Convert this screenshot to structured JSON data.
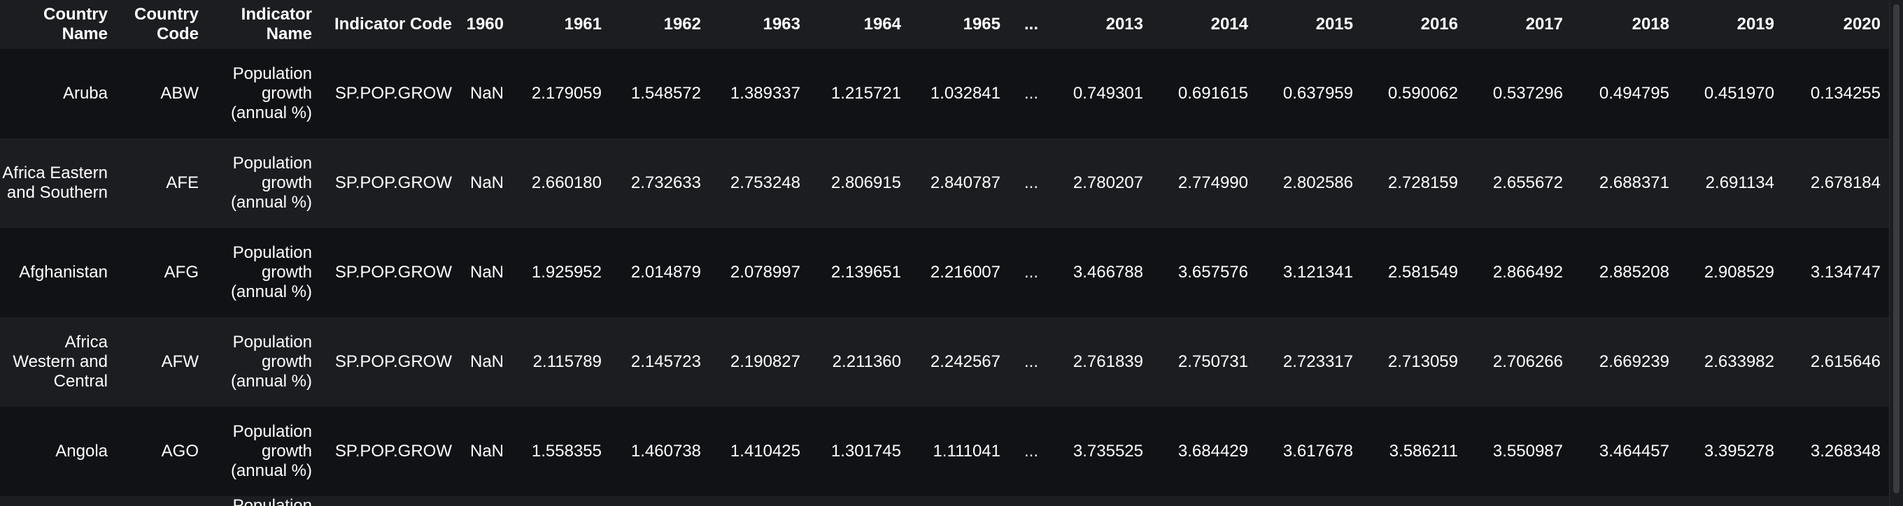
{
  "table": {
    "columns": [
      "Country Name",
      "Country Code",
      "Indicator Name",
      "Indicator Code",
      "1960",
      "1961",
      "1962",
      "1963",
      "1964",
      "1965",
      "...",
      "2013",
      "2014",
      "2015",
      "2016",
      "2017",
      "2018",
      "2019",
      "2020"
    ],
    "rows": [
      [
        "Aruba",
        "ABW",
        "Population growth (annual %)",
        "SP.POP.GROW",
        "NaN",
        "2.179059",
        "1.548572",
        "1.389337",
        "1.215721",
        "1.032841",
        "...",
        "0.749301",
        "0.691615",
        "0.637959",
        "0.590062",
        "0.537296",
        "0.494795",
        "0.451970",
        "0.134255"
      ],
      [
        "Africa Eastern and Southern",
        "AFE",
        "Population growth (annual %)",
        "SP.POP.GROW",
        "NaN",
        "2.660180",
        "2.732633",
        "2.753248",
        "2.806915",
        "2.840787",
        "...",
        "2.780207",
        "2.774990",
        "2.802586",
        "2.728159",
        "2.655672",
        "2.688371",
        "2.691134",
        "2.678184"
      ],
      [
        "Afghanistan",
        "AFG",
        "Population growth (annual %)",
        "SP.POP.GROW",
        "NaN",
        "1.925952",
        "2.014879",
        "2.078997",
        "2.139651",
        "2.216007",
        "...",
        "3.466788",
        "3.657576",
        "3.121341",
        "2.581549",
        "2.866492",
        "2.885208",
        "2.908529",
        "3.134747"
      ],
      [
        "Africa Western and Central",
        "AFW",
        "Population growth (annual %)",
        "SP.POP.GROW",
        "NaN",
        "2.115789",
        "2.145723",
        "2.190827",
        "2.211360",
        "2.242567",
        "...",
        "2.761839",
        "2.750731",
        "2.723317",
        "2.713059",
        "2.706266",
        "2.669239",
        "2.633982",
        "2.615646"
      ],
      [
        "Angola",
        "AGO",
        "Population growth (annual %)",
        "SP.POP.GROW",
        "NaN",
        "1.558355",
        "1.460738",
        "1.410425",
        "1.301745",
        "1.111041",
        "...",
        "3.735525",
        "3.684429",
        "3.617678",
        "3.586211",
        "3.550987",
        "3.464457",
        "3.395278",
        "3.268348"
      ]
    ],
    "partial_row": {
      "indicator_name": "Population"
    }
  }
}
